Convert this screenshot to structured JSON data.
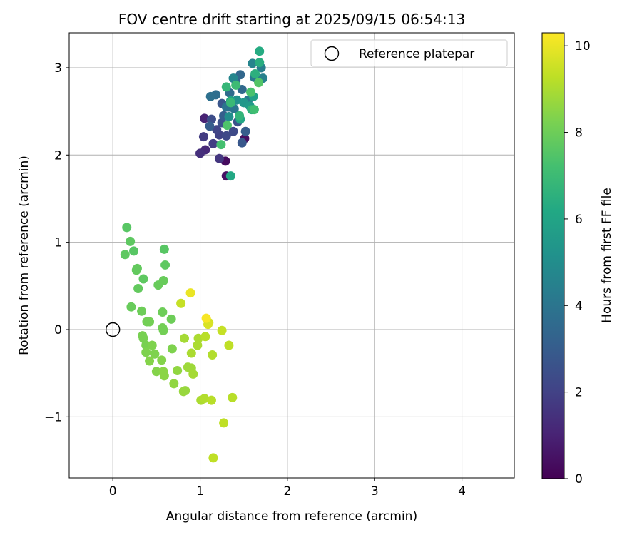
{
  "chart_data": {
    "type": "scatter",
    "title": "FOV centre drift starting at 2025/09/15 06:54:13",
    "xlabel": "Angular distance from reference (arcmin)",
    "ylabel": "Rotation from reference (arcmin)",
    "xlim": [
      -0.5,
      4.6
    ],
    "ylim": [
      -1.7,
      3.4
    ],
    "xticks": [
      0,
      1,
      2,
      3,
      4
    ],
    "yticks": [
      -1,
      0,
      1,
      2,
      3
    ],
    "xtick_labels": [
      "0",
      "1",
      "2",
      "3",
      "4"
    ],
    "ytick_labels": [
      "−1",
      "0",
      "1",
      "2",
      "3"
    ],
    "grid": true,
    "legend": {
      "position": "top-right",
      "entries": [
        "Reference platepar"
      ]
    },
    "reference_point": {
      "name": "Reference platepar",
      "x": 0,
      "y": 0,
      "marker": "open-circle"
    },
    "colorbar": {
      "label": "Hours from first FF file",
      "colormap": "viridis",
      "range": [
        0,
        10.3
      ],
      "ticks": [
        0,
        2,
        4,
        6,
        8,
        10
      ],
      "tick_labels": [
        "0",
        "2",
        "4",
        "6",
        "8",
        "10"
      ]
    },
    "series": [
      {
        "points": [
          {
            "x": 1.29,
            "y": 1.93,
            "c": 0.3
          },
          {
            "x": 1.3,
            "y": 1.76,
            "c": 0.5
          },
          {
            "x": 1.51,
            "y": 2.19,
            "c": 0.4
          },
          {
            "x": 1.05,
            "y": 2.42,
            "c": 1.0
          },
          {
            "x": 1.06,
            "y": 2.06,
            "c": 1.2
          },
          {
            "x": 1.0,
            "y": 2.02,
            "c": 1.4
          },
          {
            "x": 1.22,
            "y": 1.96,
            "c": 1.6
          },
          {
            "x": 1.04,
            "y": 2.21,
            "c": 1.8
          },
          {
            "x": 1.15,
            "y": 2.13,
            "c": 1.9
          },
          {
            "x": 1.22,
            "y": 2.23,
            "c": 2.0
          },
          {
            "x": 1.19,
            "y": 2.29,
            "c": 2.1
          },
          {
            "x": 1.3,
            "y": 2.22,
            "c": 2.2
          },
          {
            "x": 1.38,
            "y": 2.27,
            "c": 2.3
          },
          {
            "x": 1.13,
            "y": 2.41,
            "c": 2.4
          },
          {
            "x": 1.25,
            "y": 2.37,
            "c": 2.5
          },
          {
            "x": 1.43,
            "y": 2.38,
            "c": 2.6
          },
          {
            "x": 1.25,
            "y": 2.59,
            "c": 2.7
          },
          {
            "x": 1.48,
            "y": 2.14,
            "c": 2.8
          },
          {
            "x": 1.52,
            "y": 2.27,
            "c": 3.0
          },
          {
            "x": 1.11,
            "y": 2.33,
            "c": 3.0
          },
          {
            "x": 1.27,
            "y": 2.45,
            "c": 3.1
          },
          {
            "x": 1.33,
            "y": 2.55,
            "c": 3.2
          },
          {
            "x": 1.41,
            "y": 2.85,
            "c": 3.3
          },
          {
            "x": 1.46,
            "y": 2.92,
            "c": 3.4
          },
          {
            "x": 1.48,
            "y": 2.75,
            "c": 3.5
          },
          {
            "x": 1.34,
            "y": 2.71,
            "c": 3.6
          },
          {
            "x": 1.18,
            "y": 2.69,
            "c": 3.7
          },
          {
            "x": 1.12,
            "y": 2.67,
            "c": 3.8
          },
          {
            "x": 1.3,
            "y": 2.55,
            "c": 3.9
          },
          {
            "x": 1.39,
            "y": 2.53,
            "c": 4.0
          },
          {
            "x": 1.55,
            "y": 2.63,
            "c": 4.1
          },
          {
            "x": 1.62,
            "y": 2.89,
            "c": 4.2
          },
          {
            "x": 1.7,
            "y": 3.0,
            "c": 4.4
          },
          {
            "x": 1.72,
            "y": 2.88,
            "c": 4.5
          },
          {
            "x": 1.6,
            "y": 3.05,
            "c": 4.6
          },
          {
            "x": 1.38,
            "y": 2.88,
            "c": 4.7
          },
          {
            "x": 1.33,
            "y": 2.44,
            "c": 5.0
          },
          {
            "x": 1.42,
            "y": 2.63,
            "c": 5.2
          },
          {
            "x": 1.5,
            "y": 2.6,
            "c": 5.4
          },
          {
            "x": 1.57,
            "y": 2.56,
            "c": 5.6
          },
          {
            "x": 1.61,
            "y": 2.67,
            "c": 5.8
          },
          {
            "x": 1.35,
            "y": 2.62,
            "c": 6.0
          },
          {
            "x": 1.46,
            "y": 2.41,
            "c": 6.1
          },
          {
            "x": 1.35,
            "y": 1.76,
            "c": 6.2
          },
          {
            "x": 1.68,
            "y": 3.19,
            "c": 6.3
          },
          {
            "x": 1.68,
            "y": 3.06,
            "c": 6.4
          },
          {
            "x": 1.63,
            "y": 2.93,
            "c": 6.5
          },
          {
            "x": 1.59,
            "y": 2.52,
            "c": 6.6
          },
          {
            "x": 1.45,
            "y": 2.45,
            "c": 6.7
          },
          {
            "x": 1.3,
            "y": 2.78,
            "c": 6.8
          },
          {
            "x": 1.35,
            "y": 2.6,
            "c": 6.9
          },
          {
            "x": 1.41,
            "y": 2.8,
            "c": 7.0
          },
          {
            "x": 1.62,
            "y": 2.52,
            "c": 7.1
          },
          {
            "x": 1.24,
            "y": 2.12,
            "c": 7.2
          },
          {
            "x": 1.58,
            "y": 2.72,
            "c": 7.3
          },
          {
            "x": 1.31,
            "y": 2.34,
            "c": 7.4
          },
          {
            "x": 1.67,
            "y": 2.83,
            "c": 7.5
          },
          {
            "x": 0.16,
            "y": 1.17,
            "c": 7.6
          },
          {
            "x": 0.2,
            "y": 1.01,
            "c": 7.7
          },
          {
            "x": 0.24,
            "y": 0.9,
            "c": 7.6
          },
          {
            "x": 0.14,
            "y": 0.86,
            "c": 7.7
          },
          {
            "x": 0.59,
            "y": 0.92,
            "c": 7.6
          },
          {
            "x": 0.6,
            "y": 0.74,
            "c": 7.7
          },
          {
            "x": 0.27,
            "y": 0.68,
            "c": 7.8
          },
          {
            "x": 0.28,
            "y": 0.7,
            "c": 7.8
          },
          {
            "x": 0.35,
            "y": 0.58,
            "c": 7.7
          },
          {
            "x": 0.58,
            "y": 0.56,
            "c": 7.9
          },
          {
            "x": 0.52,
            "y": 0.51,
            "c": 7.9
          },
          {
            "x": 0.29,
            "y": 0.47,
            "c": 7.8
          },
          {
            "x": 0.21,
            "y": 0.26,
            "c": 7.9
          },
          {
            "x": 0.33,
            "y": 0.21,
            "c": 8.0
          },
          {
            "x": 0.57,
            "y": 0.2,
            "c": 8.0
          },
          {
            "x": 0.67,
            "y": 0.12,
            "c": 8.0
          },
          {
            "x": 0.39,
            "y": 0.09,
            "c": 8.1
          },
          {
            "x": 0.42,
            "y": 0.09,
            "c": 8.1
          },
          {
            "x": 0.57,
            "y": 0.02,
            "c": 8.1
          },
          {
            "x": 0.58,
            "y": -0.01,
            "c": 8.1
          },
          {
            "x": 0.34,
            "y": -0.07,
            "c": 8.2
          },
          {
            "x": 0.35,
            "y": -0.1,
            "c": 8.2
          },
          {
            "x": 0.38,
            "y": -0.18,
            "c": 8.2
          },
          {
            "x": 0.45,
            "y": -0.18,
            "c": 8.3
          },
          {
            "x": 0.38,
            "y": -0.26,
            "c": 8.3
          },
          {
            "x": 0.48,
            "y": -0.28,
            "c": 8.3
          },
          {
            "x": 0.68,
            "y": -0.22,
            "c": 8.3
          },
          {
            "x": 0.42,
            "y": -0.36,
            "c": 8.4
          },
          {
            "x": 0.56,
            "y": -0.35,
            "c": 8.4
          },
          {
            "x": 0.5,
            "y": -0.48,
            "c": 8.4
          },
          {
            "x": 0.58,
            "y": -0.48,
            "c": 8.5
          },
          {
            "x": 0.59,
            "y": -0.53,
            "c": 8.5
          },
          {
            "x": 0.74,
            "y": -0.47,
            "c": 8.6
          },
          {
            "x": 0.7,
            "y": -0.62,
            "c": 8.6
          },
          {
            "x": 0.81,
            "y": -0.71,
            "c": 8.7
          },
          {
            "x": 0.83,
            "y": -0.7,
            "c": 8.7
          },
          {
            "x": 0.86,
            "y": -0.43,
            "c": 8.8
          },
          {
            "x": 0.9,
            "y": -0.44,
            "c": 8.8
          },
          {
            "x": 0.92,
            "y": -0.51,
            "c": 8.9
          },
          {
            "x": 0.82,
            "y": -0.1,
            "c": 8.9
          },
          {
            "x": 0.9,
            "y": -0.27,
            "c": 9.0
          },
          {
            "x": 0.97,
            "y": -0.18,
            "c": 9.0
          },
          {
            "x": 0.98,
            "y": -0.1,
            "c": 9.0
          },
          {
            "x": 1.06,
            "y": -0.08,
            "c": 9.2
          },
          {
            "x": 1.14,
            "y": -0.29,
            "c": 9.1
          },
          {
            "x": 1.01,
            "y": -0.81,
            "c": 9.0
          },
          {
            "x": 1.05,
            "y": -0.79,
            "c": 9.1
          },
          {
            "x": 1.13,
            "y": -0.81,
            "c": 9.2
          },
          {
            "x": 1.37,
            "y": -0.78,
            "c": 9.2
          },
          {
            "x": 1.27,
            "y": -1.07,
            "c": 9.3
          },
          {
            "x": 1.15,
            "y": -1.47,
            "c": 9.3
          },
          {
            "x": 1.33,
            "y": -0.18,
            "c": 9.3
          },
          {
            "x": 1.25,
            "y": -0.01,
            "c": 9.4
          },
          {
            "x": 0.78,
            "y": 0.3,
            "c": 9.4
          },
          {
            "x": 1.1,
            "y": 0.08,
            "c": 9.6
          },
          {
            "x": 1.09,
            "y": 0.06,
            "c": 9.7
          },
          {
            "x": 0.89,
            "y": 0.42,
            "c": 10.0
          },
          {
            "x": 1.07,
            "y": 0.13,
            "c": 10.2
          }
        ]
      }
    ]
  }
}
